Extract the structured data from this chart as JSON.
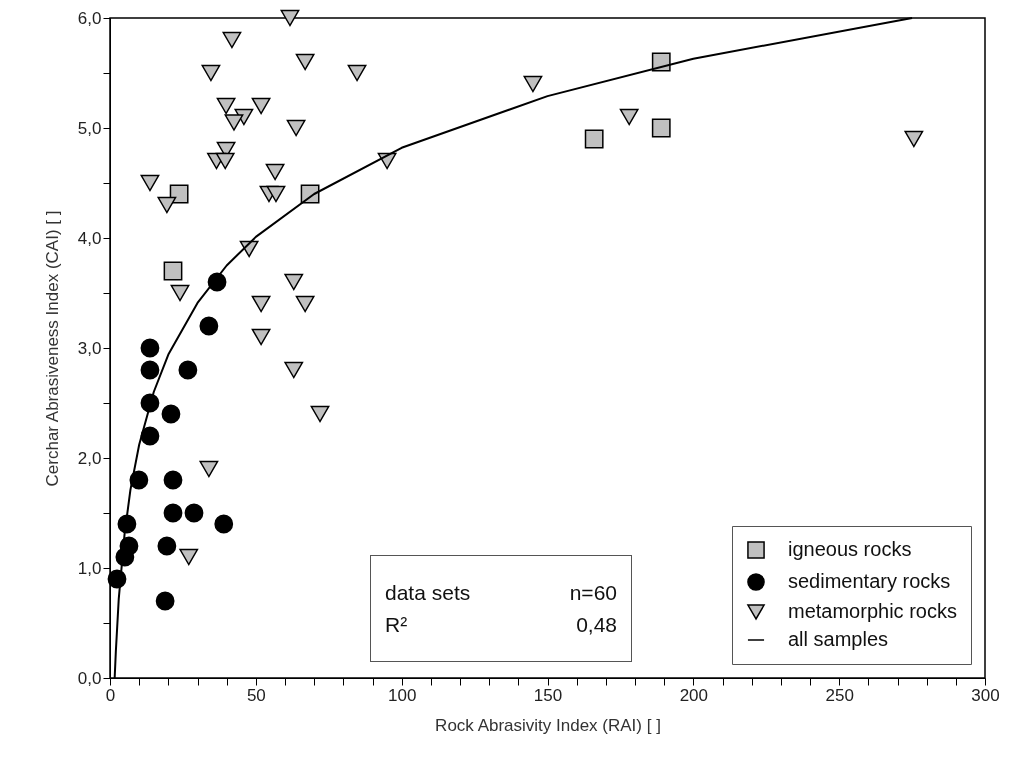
{
  "chart_data": {
    "type": "scatter",
    "xlabel": "Rock Abrasivity Index (RAI) [ ]",
    "ylabel": "Cerchar Abrasiveness Index (CAI) [ ]",
    "xlim": [
      0,
      300
    ],
    "ylim": [
      0,
      6
    ],
    "xticks": [
      0,
      {
        "value": 10,
        "label": null
      },
      {
        "value": 20,
        "label": null
      },
      {
        "value": 30,
        "label": null
      },
      {
        "value": 40,
        "label": null
      },
      50,
      {
        "value": 60,
        "label": null
      },
      {
        "value": 70,
        "label": null
      },
      {
        "value": 80,
        "label": null
      },
      {
        "value": 90,
        "label": null
      },
      100,
      {
        "value": 110,
        "label": null
      },
      {
        "value": 120,
        "label": null
      },
      {
        "value": 130,
        "label": null
      },
      {
        "value": 140,
        "label": null
      },
      150,
      {
        "value": 160,
        "label": null
      },
      {
        "value": 170,
        "label": null
      },
      {
        "value": 180,
        "label": null
      },
      {
        "value": 190,
        "label": null
      },
      200,
      {
        "value": 210,
        "label": null
      },
      {
        "value": 220,
        "label": null
      },
      {
        "value": 230,
        "label": null
      },
      {
        "value": 240,
        "label": null
      },
      250,
      {
        "value": 260,
        "label": null
      },
      {
        "value": 270,
        "label": null
      },
      {
        "value": 280,
        "label": null
      },
      {
        "value": 290,
        "label": null
      },
      300
    ],
    "yticks": [
      {
        "value": 0,
        "label": "0,0"
      },
      {
        "value": 0.5,
        "label": null
      },
      {
        "value": 1,
        "label": "1,0"
      },
      {
        "value": 1.5,
        "label": null
      },
      {
        "value": 2,
        "label": "2,0"
      },
      {
        "value": 2.5,
        "label": null
      },
      {
        "value": 3,
        "label": "3,0"
      },
      {
        "value": 3.5,
        "label": null
      },
      {
        "value": 4,
        "label": "4,0"
      },
      {
        "value": 4.5,
        "label": null
      },
      {
        "value": 5,
        "label": "5,0"
      },
      {
        "value": 5.5,
        "label": null
      },
      {
        "value": 6,
        "label": "6,0"
      }
    ],
    "grid": false,
    "legend": "bottom right",
    "annotations": [
      "data sets",
      "n=60",
      "R²",
      "0,48"
    ],
    "series": [
      {
        "name": "igneous rocks",
        "color": "#c0c0c0",
        "marker": "square",
        "x": [
          23.7,
          21.6,
          68.6,
          166,
          189,
          189
        ],
        "values": [
          4.4,
          3.7,
          4.4,
          4.9,
          5.6,
          5.0
        ]
      },
      {
        "name": "sedimentary rocks",
        "color": "#000000",
        "marker": "circle",
        "x": [
          36.7,
          33.9,
          13.7,
          13.7,
          26.7,
          13.7,
          20.9,
          13.7,
          9.9,
          21.6,
          21.6,
          28.8,
          39,
          5.8,
          6.5,
          19.5,
          5.1,
          2.4,
          18.9
        ],
        "values": [
          3.6,
          3.2,
          3.0,
          2.8,
          2.8,
          2.5,
          2.4,
          2.2,
          1.8,
          1.8,
          1.5,
          1.5,
          1.4,
          1.4,
          1.2,
          1.2,
          1.1,
          0.9,
          0.7
        ]
      },
      {
        "name": "metamorphic rocks",
        "color": "#c0c0c0",
        "marker": "triangle",
        "x": [
          61.7,
          41.8,
          66.9,
          84.7,
          34.6,
          39.8,
          51.8,
          45.9,
          42.5,
          63.8,
          39.8,
          36.5,
          39.5,
          56.6,
          13.7,
          54.5,
          56.9,
          19.5,
          95,
          47.7,
          24,
          63,
          51.8,
          66.9,
          51.8,
          63,
          72,
          33.9,
          27,
          145,
          178,
          275.6
        ],
        "values": [
          6.0,
          5.8,
          5.6,
          5.5,
          5.5,
          5.2,
          5.2,
          5.1,
          5.05,
          5.0,
          4.8,
          4.7,
          4.7,
          4.6,
          4.5,
          4.4,
          4.4,
          4.3,
          4.7,
          3.9,
          3.5,
          3.6,
          3.4,
          3.4,
          3.1,
          2.8,
          2.4,
          1.9,
          1.1,
          5.4,
          5.1,
          4.9
        ]
      },
      {
        "name": "all samples",
        "type": "line",
        "color": "#000000",
        "x": [
          1.6,
          2,
          3,
          5,
          7,
          10,
          15,
          20,
          30,
          40,
          50,
          70,
          100,
          150,
          200,
          275
        ],
        "values": [
          0.0,
          0.24,
          0.72,
          1.31,
          1.71,
          2.12,
          2.6,
          2.94,
          3.41,
          3.75,
          4.01,
          4.4,
          4.82,
          5.29,
          5.63,
          6.0
        ]
      }
    ]
  }
}
